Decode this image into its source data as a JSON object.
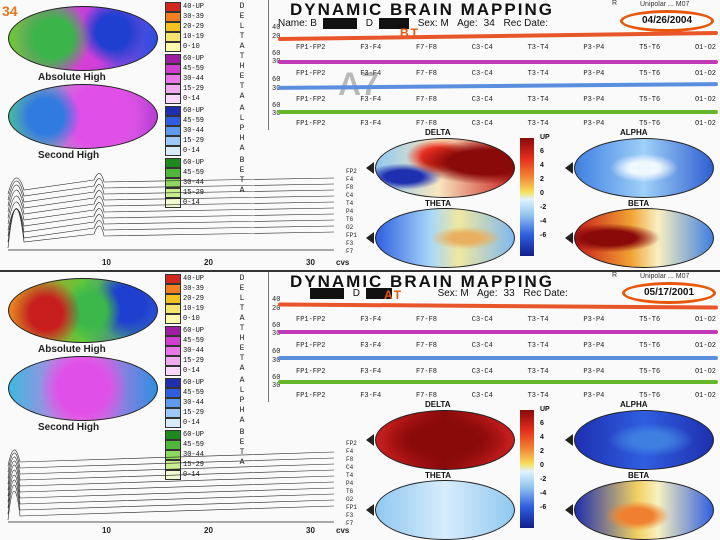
{
  "slide_number": "34",
  "colors": {
    "accent_orange": "#e8560a",
    "delta_line": "#e8562a",
    "theta_line": "#c03ab8",
    "alpha_line": "#5a8fe0",
    "beta_line": "#66b82a"
  },
  "panels": [
    {
      "id": "top",
      "title": "DYNAMIC  BRAIN  MAPPING",
      "trademark": "R",
      "info": {
        "name_label": "Name: B",
        "name_mid": "D",
        "sex": "Sex: M",
        "age_label": "Age:",
        "age": "34",
        "rec_label": "Rec Date:",
        "date": "04/26/2004"
      },
      "top_right": "Unipolar ... M07",
      "marker": "BT",
      "watermark": "A7",
      "map_captions": [
        "Absolute High",
        "Second High"
      ],
      "legend": [
        {
          "band": "D E L T A",
          "labels": [
            "40-UP",
            "30-39",
            "20-29",
            "10-19",
            "0-10"
          ]
        },
        {
          "band": "T H E T A",
          "labels": [
            "60-UP",
            "45-59",
            "30-44",
            "15-29",
            "0-14"
          ]
        },
        {
          "band": "A L P H A",
          "labels": [
            "60-UP",
            "45-59",
            "30-44",
            "15-29",
            "0-14"
          ]
        },
        {
          "band": "B E T A",
          "labels": [
            "60-UP",
            "45-59",
            "30-44",
            "15-29",
            "0-14"
          ]
        }
      ],
      "axis": [
        "40",
        "20",
        "60",
        "30",
        "60",
        "30",
        "60",
        "30"
      ],
      "channel_rows": [
        [
          "FP1-FP2",
          "F3-F4",
          "F7-F8",
          "C3-C4",
          "T3-T4",
          "P3-P4",
          "T5-T6",
          "O1-O2"
        ],
        [
          "FP1-FP2",
          "F3-F4",
          "F7-F8",
          "C3-C4",
          "T3-T4",
          "P3-P4",
          "T5-T6",
          "O1-O2"
        ],
        [
          "FP1-FP2",
          "F3-F4",
          "F7-F8",
          "C3-C4",
          "T3-T4",
          "P3-P4",
          "T5-T6",
          "O1-O2"
        ],
        [
          "FP1-FP2",
          "F3-F4",
          "F7-F8",
          "C3-C4",
          "T3-T4",
          "P3-P4",
          "T5-T6",
          "O1-O2"
        ]
      ],
      "band_maps": [
        "DELTA",
        "ALPHA",
        "THETA",
        "BETA"
      ],
      "scale": [
        "UP",
        "6",
        "4",
        "2",
        "0",
        "-2",
        "-4",
        "-6"
      ],
      "spectrum_ticks": [
        "10",
        "20",
        "30",
        "cvs"
      ],
      "spectrum_right": [
        "FP2",
        "F4",
        "F8",
        "C4",
        "T4",
        "P4",
        "T6",
        "O2",
        "FP1",
        "F3",
        "F7",
        "C3",
        "T3",
        "P3",
        "T5",
        "O1"
      ]
    },
    {
      "id": "bottom",
      "title": "DYNAMIC  BRAIN  MAPPING",
      "trademark": "R",
      "info": {
        "name_label": "",
        "name_mid": "D",
        "sex": "Sex: M",
        "age_label": "Age:",
        "age": "33",
        "rec_label": "Rec Date:",
        "date": "05/17/2001"
      },
      "top_right": "Unipolar ... M07",
      "marker": "AT",
      "watermark": "",
      "map_captions": [
        "Absolute High",
        "Second High"
      ],
      "legend": [
        {
          "band": "D E L T A",
          "labels": [
            "40-UP",
            "30-39",
            "20-29",
            "10-19",
            "0-10"
          ]
        },
        {
          "band": "T H E T A",
          "labels": [
            "60-UP",
            "45-59",
            "30-44",
            "15-29",
            "0-14"
          ]
        },
        {
          "band": "A L P H A",
          "labels": [
            "60-UP",
            "45-59",
            "30-44",
            "15-29",
            "0-14"
          ]
        },
        {
          "band": "B E T A",
          "labels": [
            "60-UP",
            "45-59",
            "30-44",
            "15-29",
            "0-14"
          ]
        }
      ],
      "axis": [
        "40",
        "20",
        "60",
        "30",
        "60",
        "30",
        "60",
        "30"
      ],
      "channel_rows": [
        [
          "FP1-FP2",
          "F3-F4",
          "F7-F8",
          "C3-C4",
          "T3-T4",
          "P3-P4",
          "T5-T6",
          "O1-O2"
        ],
        [
          "FP1-FP2",
          "F3-F4",
          "F7-F8",
          "C3-C4",
          "T3-T4",
          "P3-P4",
          "T5-T6",
          "O1-O2"
        ],
        [
          "FP1-FP2",
          "F3-F4",
          "F7-F8",
          "C3-C4",
          "T3-T4",
          "P3-P4",
          "T5-T6",
          "O1-O2"
        ],
        [
          "FP1-FP2",
          "F3-F4",
          "F7-F8",
          "C3-C4",
          "T3-T4",
          "P3-P4",
          "T5-T6",
          "O1-O2"
        ]
      ],
      "band_maps": [
        "DELTA",
        "ALPHA",
        "THETA",
        "BETA"
      ],
      "scale": [
        "UP",
        "6",
        "4",
        "2",
        "0",
        "-2",
        "-4",
        "-6"
      ],
      "spectrum_ticks": [
        "10",
        "20",
        "30",
        "cvs"
      ],
      "spectrum_right": [
        "FP2",
        "F4",
        "F8",
        "C4",
        "T4",
        "P4",
        "T6",
        "O2",
        "FP1",
        "F3",
        "F7",
        "C3",
        "T3",
        "P3",
        "T5",
        "O1"
      ]
    }
  ]
}
